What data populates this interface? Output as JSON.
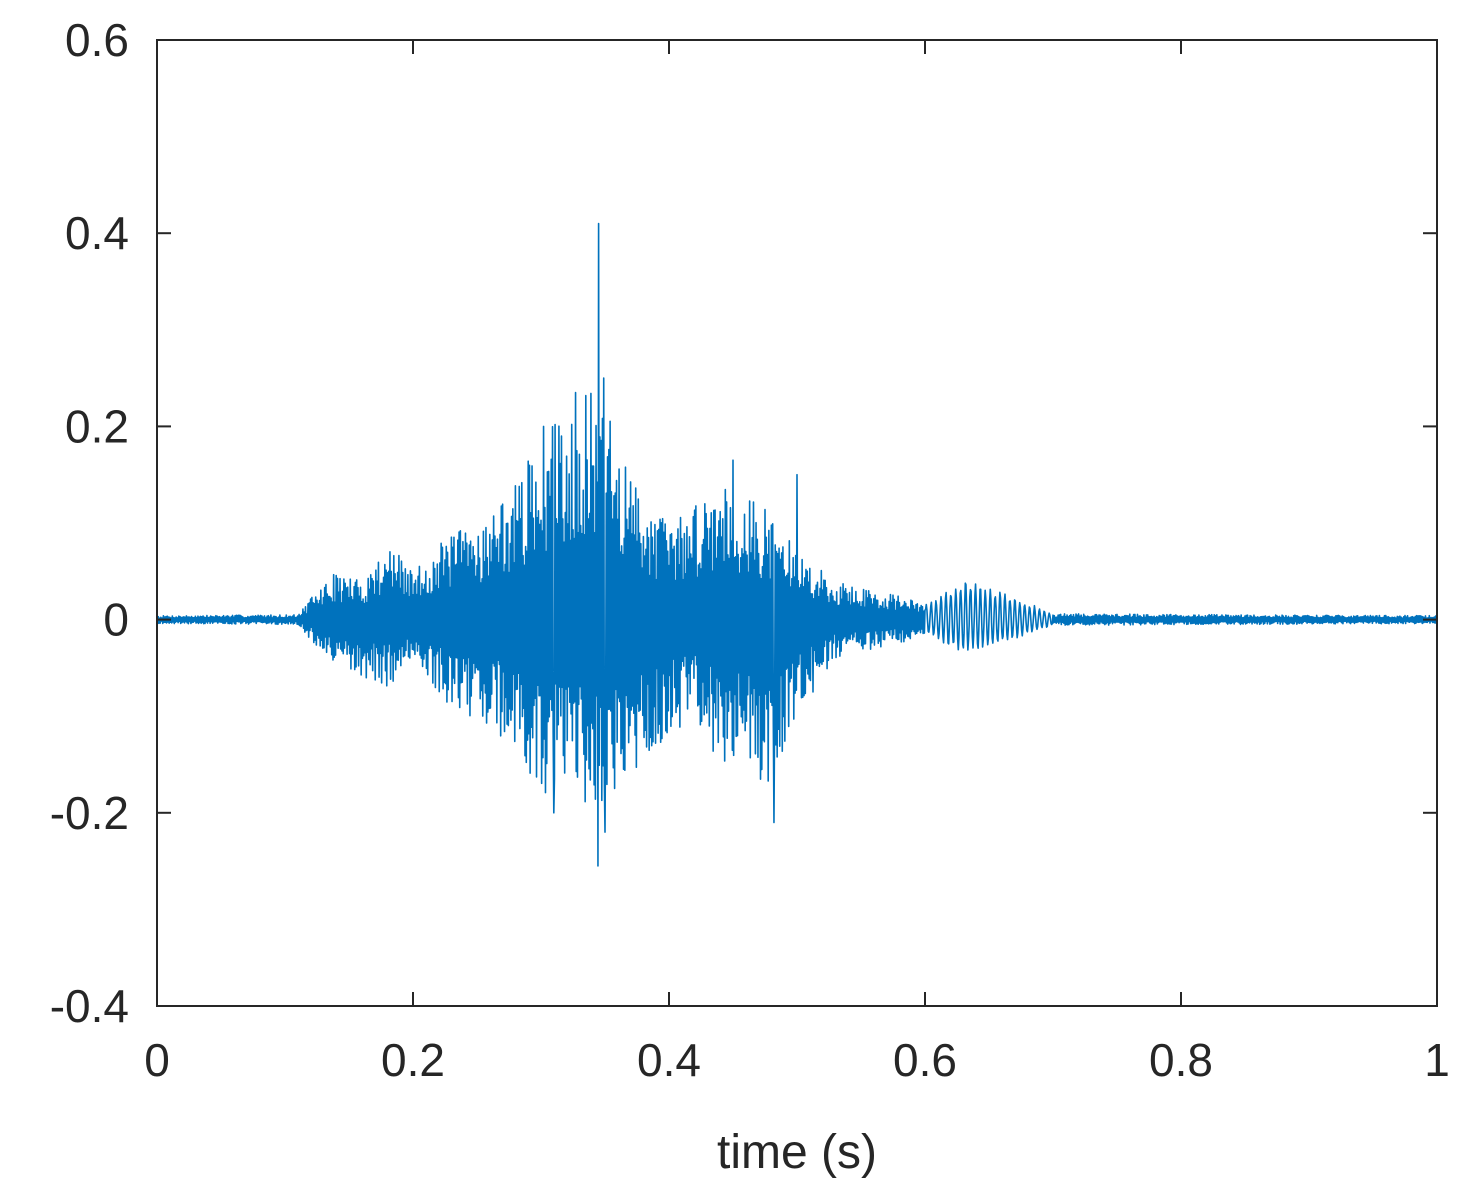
{
  "chart_data": {
    "type": "line",
    "title": "",
    "xlabel": "time (s)",
    "ylabel": "",
    "xlim": [
      0,
      1
    ],
    "ylim": [
      -0.4,
      0.6
    ],
    "x_ticks": [
      0,
      0.2,
      0.4,
      0.6,
      0.8,
      1
    ],
    "x_tick_labels": [
      "0",
      "0.2",
      "0.4",
      "0.6",
      "0.8",
      "1"
    ],
    "y_ticks": [
      -0.4,
      -0.2,
      0,
      0.2,
      0.4,
      0.6
    ],
    "y_tick_labels": [
      "-0.4",
      "-0.2",
      "0",
      "0.2",
      "0.4",
      "0.6"
    ],
    "grid": false,
    "box": true,
    "series": [
      {
        "color": "#0072BD",
        "sample_rate_hz": 2000,
        "envelope_points": [
          {
            "t": 0.0,
            "pos": 0.004,
            "neg": -0.004
          },
          {
            "t": 0.11,
            "pos": 0.005,
            "neg": -0.005
          },
          {
            "t": 0.125,
            "pos": 0.03,
            "neg": -0.03
          },
          {
            "t": 0.14,
            "pos": 0.05,
            "neg": -0.05
          },
          {
            "t": 0.16,
            "pos": 0.04,
            "neg": -0.06
          },
          {
            "t": 0.18,
            "pos": 0.08,
            "neg": -0.07
          },
          {
            "t": 0.2,
            "pos": 0.05,
            "neg": -0.05
          },
          {
            "t": 0.23,
            "pos": 0.09,
            "neg": -0.09
          },
          {
            "t": 0.26,
            "pos": 0.11,
            "neg": -0.11
          },
          {
            "t": 0.28,
            "pos": 0.14,
            "neg": -0.14
          },
          {
            "t": 0.3,
            "pos": 0.19,
            "neg": -0.19
          },
          {
            "t": 0.32,
            "pos": 0.22,
            "neg": -0.16
          },
          {
            "t": 0.345,
            "pos": 0.24,
            "neg": -0.22
          },
          {
            "t": 0.37,
            "pos": 0.15,
            "neg": -0.17
          },
          {
            "t": 0.4,
            "pos": 0.1,
            "neg": -0.12
          },
          {
            "t": 0.42,
            "pos": 0.12,
            "neg": -0.1
          },
          {
            "t": 0.44,
            "pos": 0.15,
            "neg": -0.15
          },
          {
            "t": 0.46,
            "pos": 0.13,
            "neg": -0.16
          },
          {
            "t": 0.48,
            "pos": 0.11,
            "neg": -0.17
          },
          {
            "t": 0.5,
            "pos": 0.07,
            "neg": -0.1
          },
          {
            "t": 0.53,
            "pos": 0.04,
            "neg": -0.04
          },
          {
            "t": 0.56,
            "pos": 0.03,
            "neg": -0.03
          },
          {
            "t": 0.58,
            "pos": 0.025,
            "neg": -0.025
          },
          {
            "t": 0.6,
            "pos": 0.015,
            "neg": -0.015
          },
          {
            "t": 0.63,
            "pos": 0.042,
            "neg": -0.035
          },
          {
            "t": 0.66,
            "pos": 0.03,
            "neg": -0.025
          },
          {
            "t": 0.7,
            "pos": 0.006,
            "neg": -0.006
          },
          {
            "t": 1.0,
            "pos": 0.004,
            "neg": -0.004
          }
        ],
        "peaks": [
          {
            "t": 0.345,
            "y": 0.41
          },
          {
            "t": 0.349,
            "y": 0.25
          },
          {
            "t": 0.3445,
            "y": -0.255
          },
          {
            "t": 0.35,
            "y": -0.22
          },
          {
            "t": 0.302,
            "y": 0.2
          },
          {
            "t": 0.31,
            "y": -0.2
          },
          {
            "t": 0.327,
            "y": 0.235
          },
          {
            "t": 0.45,
            "y": 0.165
          },
          {
            "t": 0.482,
            "y": -0.21
          },
          {
            "t": 0.5,
            "y": 0.15
          }
        ]
      }
    ]
  }
}
